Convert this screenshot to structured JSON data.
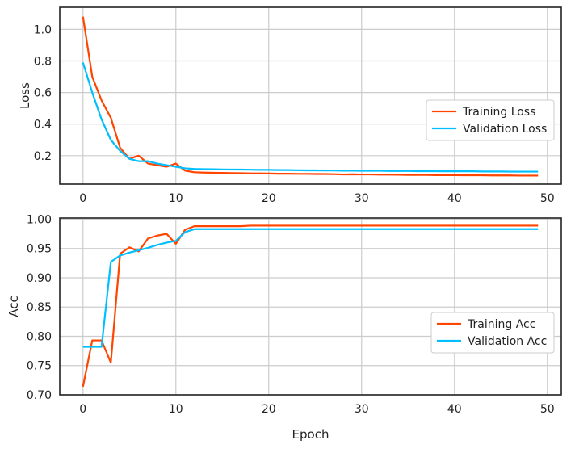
{
  "colors": {
    "training": "#ff4500",
    "validation": "#00bfff",
    "grid": "#cccccc",
    "frame": "#222222",
    "background": "#ffffff"
  },
  "chart_data": [
    {
      "type": "line",
      "title": "",
      "xlabel": "",
      "ylabel": "Loss",
      "xlim": [
        -2.5,
        51.5
      ],
      "ylim": [
        0.02,
        1.14
      ],
      "xticks": [
        0,
        10,
        20,
        30,
        40,
        50
      ],
      "yticks": [
        0.2,
        0.4,
        0.6,
        0.8,
        1.0
      ],
      "ytick_labels": [
        "0.2",
        "0.4",
        "0.6",
        "0.8",
        "1.0"
      ],
      "grid": true,
      "legend_position": "center-right",
      "x": [
        0,
        1,
        2,
        3,
        4,
        5,
        6,
        7,
        8,
        9,
        10,
        11,
        12,
        13,
        14,
        15,
        16,
        17,
        18,
        19,
        20,
        21,
        22,
        23,
        24,
        25,
        26,
        27,
        28,
        29,
        30,
        31,
        32,
        33,
        34,
        35,
        36,
        37,
        38,
        39,
        40,
        41,
        42,
        43,
        44,
        45,
        46,
        47,
        48,
        49
      ],
      "series": [
        {
          "name": "Training Loss",
          "color_key": "training",
          "values": [
            1.08,
            0.7,
            0.55,
            0.44,
            0.25,
            0.18,
            0.2,
            0.15,
            0.14,
            0.13,
            0.15,
            0.105,
            0.095,
            0.093,
            0.092,
            0.091,
            0.09,
            0.089,
            0.088,
            0.088,
            0.087,
            0.086,
            0.086,
            0.085,
            0.085,
            0.084,
            0.084,
            0.083,
            0.081,
            0.082,
            0.081,
            0.081,
            0.08,
            0.08,
            0.079,
            0.078,
            0.078,
            0.078,
            0.077,
            0.077,
            0.077,
            0.076,
            0.076,
            0.076,
            0.075,
            0.075,
            0.075,
            0.074,
            0.074,
            0.074
          ]
        },
        {
          "name": "Validation Loss",
          "color_key": "validation",
          "values": [
            0.79,
            0.6,
            0.43,
            0.3,
            0.23,
            0.18,
            0.165,
            0.165,
            0.15,
            0.14,
            0.13,
            0.12,
            0.116,
            0.115,
            0.114,
            0.113,
            0.112,
            0.112,
            0.111,
            0.11,
            0.11,
            0.109,
            0.109,
            0.108,
            0.107,
            0.107,
            0.106,
            0.106,
            0.105,
            0.105,
            0.104,
            0.104,
            0.104,
            0.103,
            0.103,
            0.103,
            0.102,
            0.102,
            0.102,
            0.101,
            0.101,
            0.101,
            0.101,
            0.1,
            0.1,
            0.1,
            0.099,
            0.099,
            0.099,
            0.099
          ]
        }
      ]
    },
    {
      "type": "line",
      "title": "",
      "xlabel": "Epoch",
      "ylabel": "Acc",
      "xlim": [
        -2.5,
        51.5
      ],
      "ylim": [
        0.7,
        1.002
      ],
      "xticks": [
        0,
        10,
        20,
        30,
        40,
        50
      ],
      "yticks": [
        0.7,
        0.75,
        0.8,
        0.85,
        0.9,
        0.95,
        1.0
      ],
      "ytick_labels": [
        "0.70",
        "0.75",
        "0.80",
        "0.85",
        "0.90",
        "0.95",
        "1.00"
      ],
      "grid": true,
      "legend_position": "center-right",
      "x": [
        0,
        1,
        2,
        3,
        4,
        5,
        6,
        7,
        8,
        9,
        10,
        11,
        12,
        13,
        14,
        15,
        16,
        17,
        18,
        19,
        20,
        21,
        22,
        23,
        24,
        25,
        26,
        27,
        28,
        29,
        30,
        31,
        32,
        33,
        34,
        35,
        36,
        37,
        38,
        39,
        40,
        41,
        42,
        43,
        44,
        45,
        46,
        47,
        48,
        49
      ],
      "series": [
        {
          "name": "Training Acc",
          "color_key": "training",
          "values": [
            0.714,
            0.793,
            0.793,
            0.755,
            0.941,
            0.952,
            0.945,
            0.967,
            0.972,
            0.975,
            0.958,
            0.982,
            0.988,
            0.988,
            0.988,
            0.988,
            0.988,
            0.988,
            0.989,
            0.989,
            0.989,
            0.989,
            0.989,
            0.989,
            0.989,
            0.989,
            0.989,
            0.989,
            0.989,
            0.989,
            0.989,
            0.989,
            0.989,
            0.989,
            0.989,
            0.989,
            0.989,
            0.989,
            0.989,
            0.989,
            0.989,
            0.989,
            0.989,
            0.989,
            0.989,
            0.989,
            0.989,
            0.989,
            0.989,
            0.989
          ]
        },
        {
          "name": "Validation Acc",
          "color_key": "validation",
          "values": [
            0.782,
            0.782,
            0.782,
            0.927,
            0.938,
            0.943,
            0.947,
            0.951,
            0.956,
            0.96,
            0.963,
            0.978,
            0.983,
            0.983,
            0.983,
            0.983,
            0.983,
            0.983,
            0.983,
            0.983,
            0.983,
            0.983,
            0.983,
            0.983,
            0.983,
            0.983,
            0.983,
            0.983,
            0.983,
            0.983,
            0.983,
            0.983,
            0.983,
            0.983,
            0.983,
            0.983,
            0.983,
            0.983,
            0.983,
            0.983,
            0.983,
            0.983,
            0.983,
            0.983,
            0.983,
            0.983,
            0.983,
            0.983,
            0.983,
            0.983
          ]
        }
      ]
    }
  ]
}
